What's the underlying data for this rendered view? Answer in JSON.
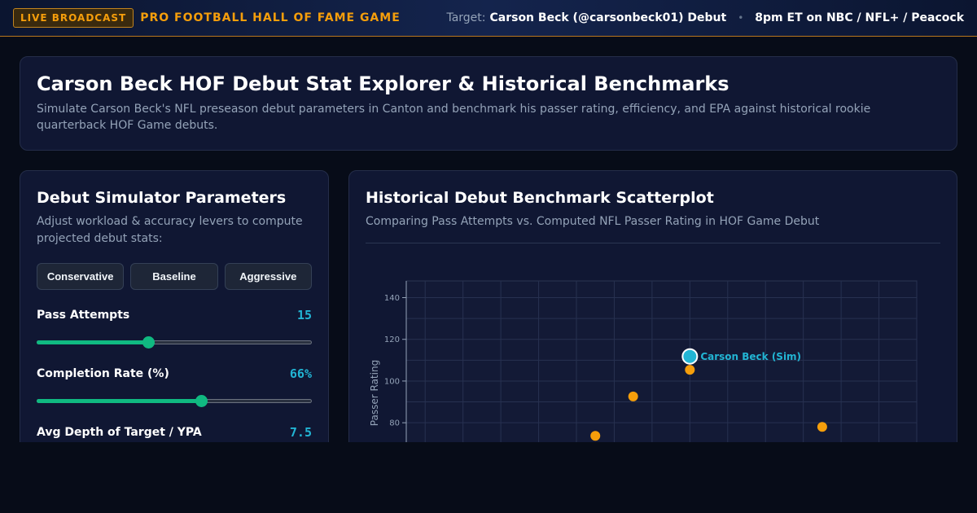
{
  "topbar": {
    "live_badge": "LIVE BROADCAST",
    "event_title": "PRO FOOTBALL HALL OF FAME GAME",
    "target_label": "Target:",
    "target_value": "Carson Beck (@carsonbeck01) Debut",
    "separator": "•",
    "schedule": "8pm ET on NBC / NFL+ / Peacock"
  },
  "hero": {
    "title": "Carson Beck HOF Debut Stat Explorer & Historical Benchmarks",
    "description": "Simulate Carson Beck's NFL preseason debut parameters in Canton and benchmark his passer rating, efficiency, and EPA against historical rookie quarterback HOF Game debuts."
  },
  "simulator": {
    "title": "Debut Simulator Parameters",
    "subtitle": "Adjust workload & accuracy levers to compute projected debut stats:",
    "presets": [
      "Conservative",
      "Baseline",
      "Aggressive"
    ],
    "params": [
      {
        "label": "Pass Attempts",
        "display": "15",
        "fill_fraction": 0.405
      },
      {
        "label": "Completion Rate (%)",
        "display": "66%",
        "fill_fraction": 0.597
      },
      {
        "label": "Avg Depth of Target / YPA",
        "display": "7.5",
        "fill_fraction": 0.5
      }
    ]
  },
  "scatter": {
    "title": "Historical Debut Benchmark Scatterplot",
    "subtitle": "Comparing Pass Attempts vs. Computed NFL Passer Rating in HOF Game Debut"
  },
  "colors": {
    "accent": "#f59e0b",
    "highlight": "#22b5d4",
    "slider": "#10b981"
  },
  "chart_data": {
    "type": "scatter",
    "xlabel": "",
    "ylabel": "Passer Rating",
    "xlim": [
      0,
      27
    ],
    "ylim": [
      50,
      148
    ],
    "y_ticks": [
      80,
      100,
      120,
      140
    ],
    "grid": true,
    "series": [
      {
        "points": [
          {
            "x": 10,
            "y": 73.7
          },
          {
            "x": 12,
            "y": 92.6
          },
          {
            "x": 15,
            "y": 105.4
          },
          {
            "x": 22,
            "y": 78.0
          }
        ],
        "color": "#f59e0b"
      },
      {
        "name": "Carson Beck (Sim)",
        "points": [
          {
            "x": 15,
            "y": 111.8
          }
        ],
        "color": "#22b5d4"
      }
    ]
  }
}
